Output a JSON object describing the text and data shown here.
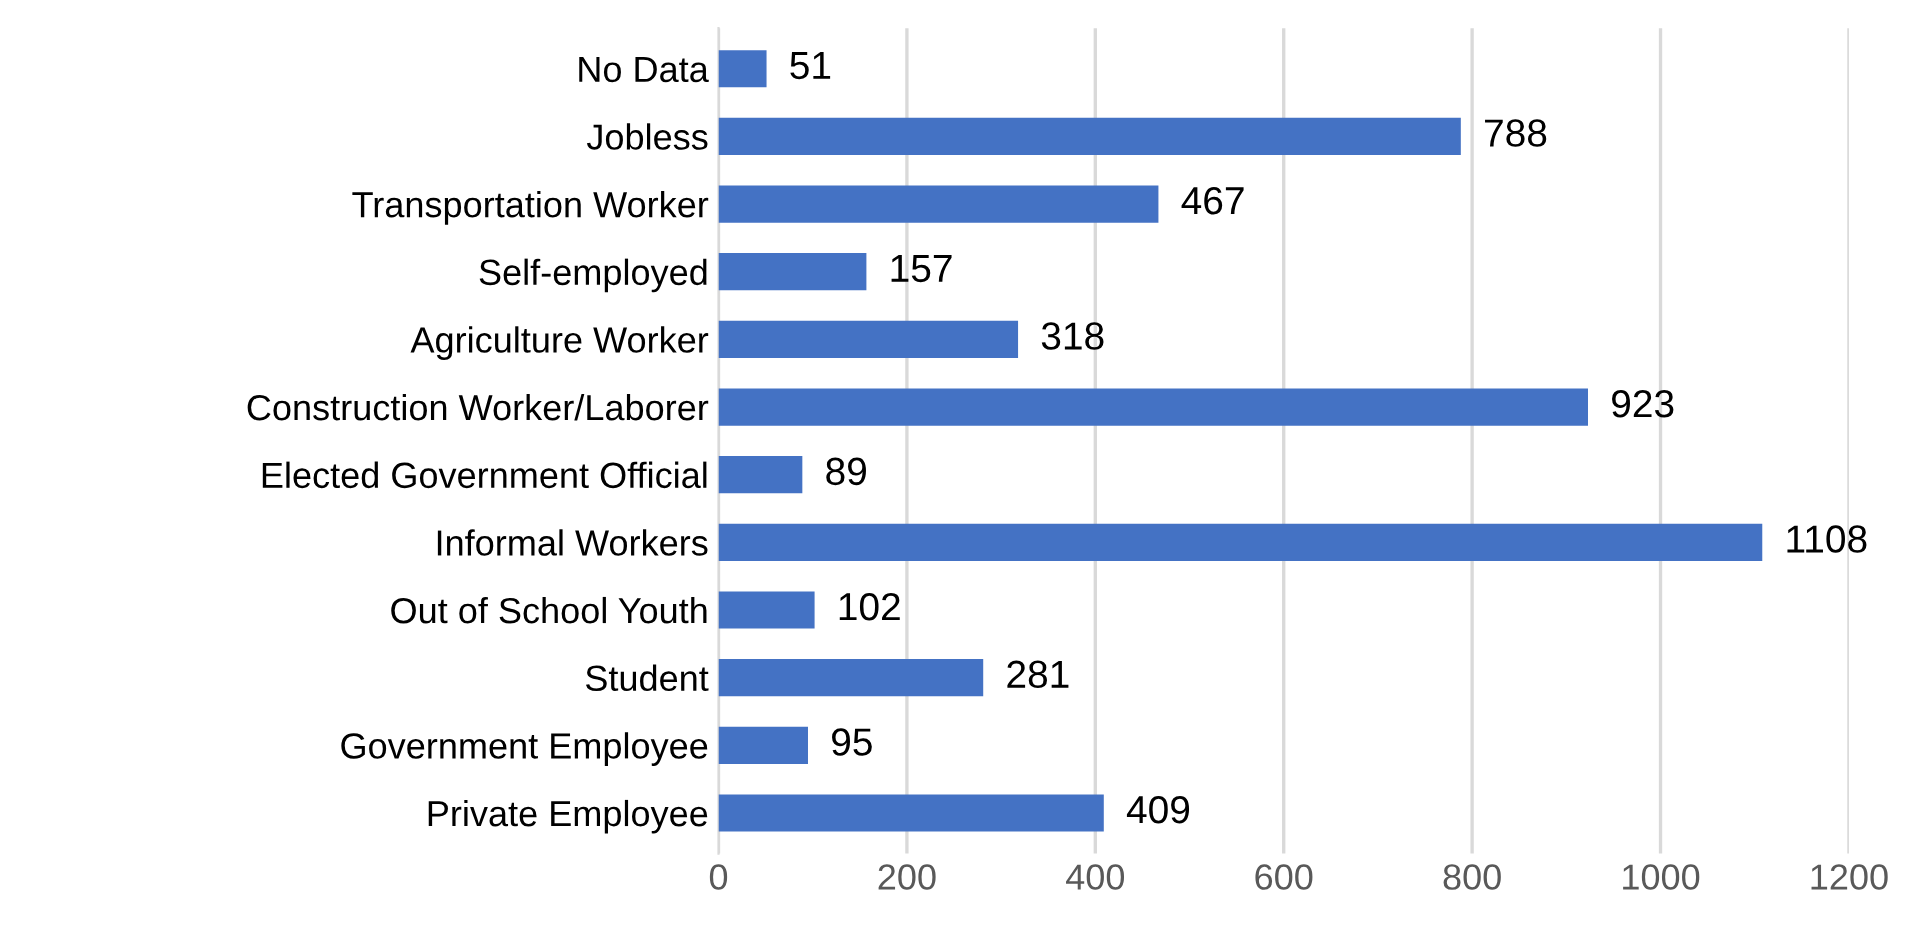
{
  "chart_data": {
    "type": "bar",
    "orientation": "horizontal",
    "categories": [
      "No Data",
      "Jobless",
      "Transportation Worker",
      "Self-employed",
      "Agriculture Worker",
      "Construction Worker/Laborer",
      "Elected Government Official",
      "Informal Workers",
      "Out of School Youth",
      "Student",
      "Government Employee",
      "Private Employee"
    ],
    "values": [
      51,
      788,
      467,
      157,
      318,
      923,
      89,
      1108,
      102,
      281,
      95,
      409
    ],
    "color": "#4472c4",
    "xlim": [
      0,
      1200
    ],
    "xticks": [
      0,
      200,
      400,
      600,
      800,
      1000,
      1200
    ],
    "grid": "x",
    "data_labels": true,
    "legend": false
  }
}
